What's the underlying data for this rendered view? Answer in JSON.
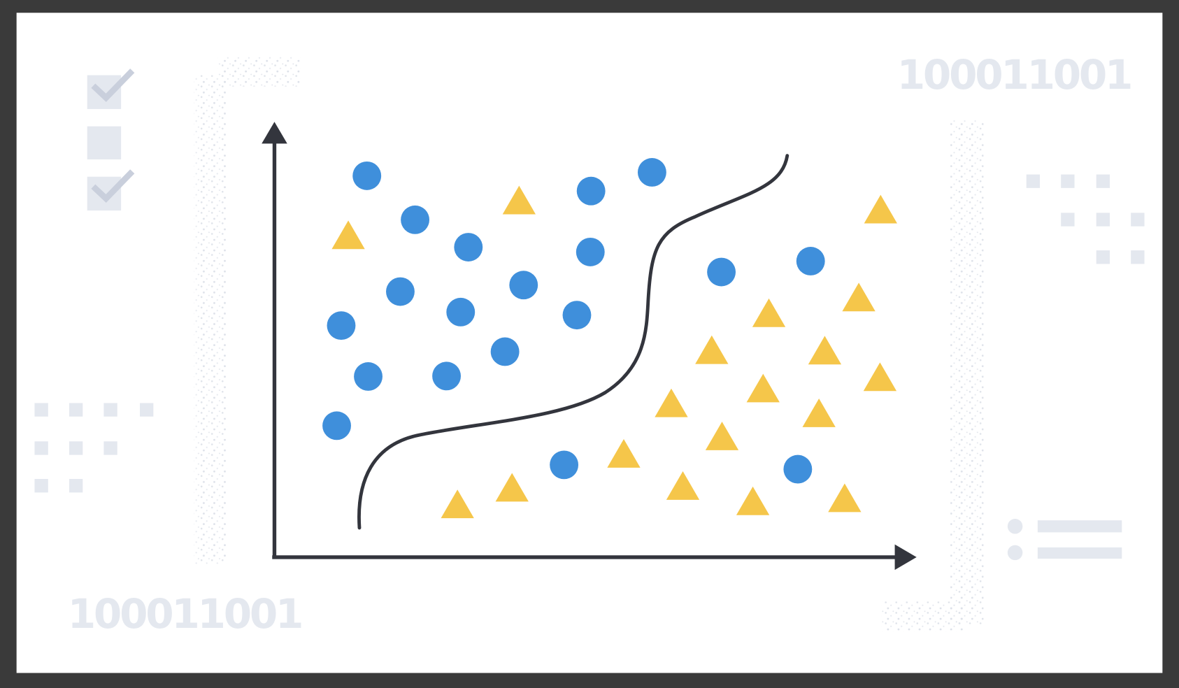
{
  "decor": {
    "binary_top": "100011001",
    "binary_bottom": "100011001",
    "checkboxes": [
      true,
      false,
      true
    ]
  },
  "colors": {
    "frame": "#3a3a3a",
    "background": "#ffffff",
    "class_circle": "#3f8fdb",
    "class_triangle": "#f5c64a",
    "axis": "#33353d",
    "decor": "#e4e8ef",
    "check": "#c9cfdc"
  },
  "chart_data": {
    "type": "scatter",
    "title": "",
    "xlabel": "",
    "ylabel": "",
    "xlim": [
      0,
      100
    ],
    "ylim": [
      0,
      100
    ],
    "grid": false,
    "decision_boundary": "s-shaped curve separating circles (upper-left) from triangles (lower-right)",
    "series": [
      {
        "marker": "circle",
        "color": "#3f8fdb",
        "points": [
          [
            14.4,
            87.6
          ],
          [
            21.9,
            77.5
          ],
          [
            30.2,
            71.2
          ],
          [
            49.3,
            84.1
          ],
          [
            58.8,
            88.4
          ],
          [
            49.2,
            70.1
          ],
          [
            19.6,
            61.0
          ],
          [
            29.0,
            56.3
          ],
          [
            38.8,
            62.5
          ],
          [
            47.1,
            55.6
          ],
          [
            10.4,
            53.2
          ],
          [
            35.9,
            47.2
          ],
          [
            14.6,
            41.5
          ],
          [
            26.8,
            41.6
          ],
          [
            9.7,
            30.2
          ],
          [
            69.6,
            65.5
          ],
          [
            83.5,
            68.0
          ],
          [
            45.1,
            21.2
          ],
          [
            81.5,
            20.2
          ]
        ]
      },
      {
        "marker": "triangle",
        "color": "#f5c64a",
        "points": [
          [
            11.5,
            73.7
          ],
          [
            38.1,
            81.7
          ],
          [
            94.4,
            79.6
          ],
          [
            91.0,
            59.4
          ],
          [
            77.0,
            55.8
          ],
          [
            68.1,
            47.3
          ],
          [
            85.7,
            47.2
          ],
          [
            94.3,
            41.1
          ],
          [
            76.1,
            38.5
          ],
          [
            61.8,
            35.1
          ],
          [
            84.8,
            32.8
          ],
          [
            69.7,
            27.5
          ],
          [
            54.4,
            23.5
          ],
          [
            63.6,
            16.1
          ],
          [
            37.0,
            15.7
          ],
          [
            28.5,
            11.9
          ],
          [
            74.5,
            12.6
          ],
          [
            88.8,
            13.3
          ]
        ]
      }
    ]
  }
}
